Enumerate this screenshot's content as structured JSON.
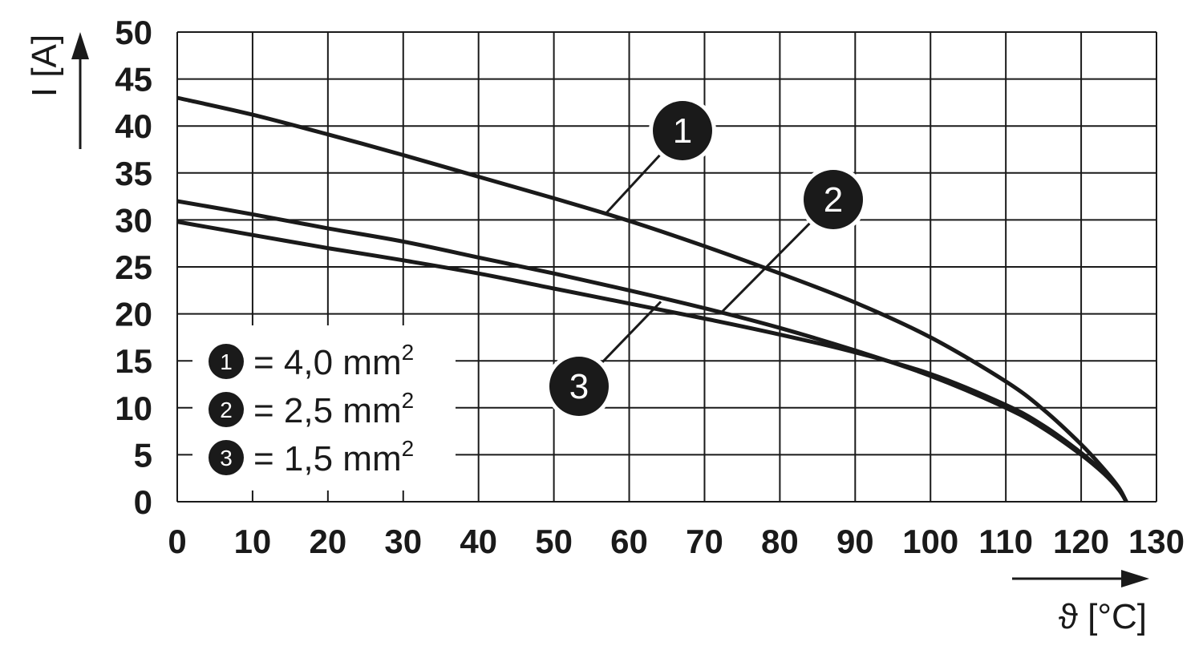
{
  "chart_data": {
    "type": "line",
    "xlabel": "ϑ [°C]",
    "ylabel": "I [A]",
    "xlim": [
      0,
      130
    ],
    "ylim": [
      0,
      50
    ],
    "xticks": [
      0,
      10,
      20,
      30,
      40,
      50,
      60,
      70,
      80,
      90,
      100,
      110,
      120,
      130
    ],
    "yticks": [
      0,
      5,
      10,
      15,
      20,
      25,
      30,
      35,
      40,
      45,
      50
    ],
    "grid": true,
    "legend_position": "bottom-left",
    "series": [
      {
        "name": "4,0 mm²",
        "marker": "1",
        "legend_text": "= 4,0 mm",
        "x": [
          0,
          10,
          20,
          30,
          40,
          50,
          60,
          70,
          80,
          90,
          100,
          110,
          115,
          120,
          123,
          125,
          126
        ],
        "y": [
          43,
          41.2,
          39.1,
          36.9,
          34.6,
          32.3,
          29.9,
          27.2,
          24.3,
          21.2,
          17.5,
          12.8,
          9.8,
          6.1,
          3.5,
          1.5,
          0
        ]
      },
      {
        "name": "2,5 mm²",
        "marker": "2",
        "legend_text": "= 2,5 mm",
        "x": [
          0,
          10,
          20,
          30,
          40,
          50,
          60,
          70,
          80,
          90,
          100,
          110,
          115,
          120,
          123,
          125,
          126
        ],
        "y": [
          32,
          30.6,
          29.1,
          27.7,
          26.0,
          24.3,
          22.5,
          20.6,
          18.5,
          16.1,
          13.4,
          10.0,
          7.8,
          5.0,
          3.0,
          1.3,
          0
        ]
      },
      {
        "name": "1,5 mm²",
        "marker": "3",
        "legend_text": "= 1,5 mm",
        "x": [
          0,
          10,
          20,
          30,
          40,
          50,
          60,
          70,
          80,
          90,
          100,
          110,
          115,
          120,
          123,
          125,
          126
        ],
        "y": [
          29.8,
          28.4,
          27.0,
          25.7,
          24.3,
          22.7,
          21.1,
          19.5,
          17.8,
          15.9,
          13.6,
          10.3,
          8.1,
          5.2,
          3.1,
          1.3,
          0
        ]
      }
    ],
    "legend_unit_superscript": "2",
    "callouts": [
      {
        "label": "1",
        "x": 56.8,
        "y": 30.6
      },
      {
        "label": "2",
        "x": 72.3,
        "y": 20.2
      },
      {
        "label": "3",
        "x": 64.2,
        "y": 21.3
      }
    ]
  }
}
